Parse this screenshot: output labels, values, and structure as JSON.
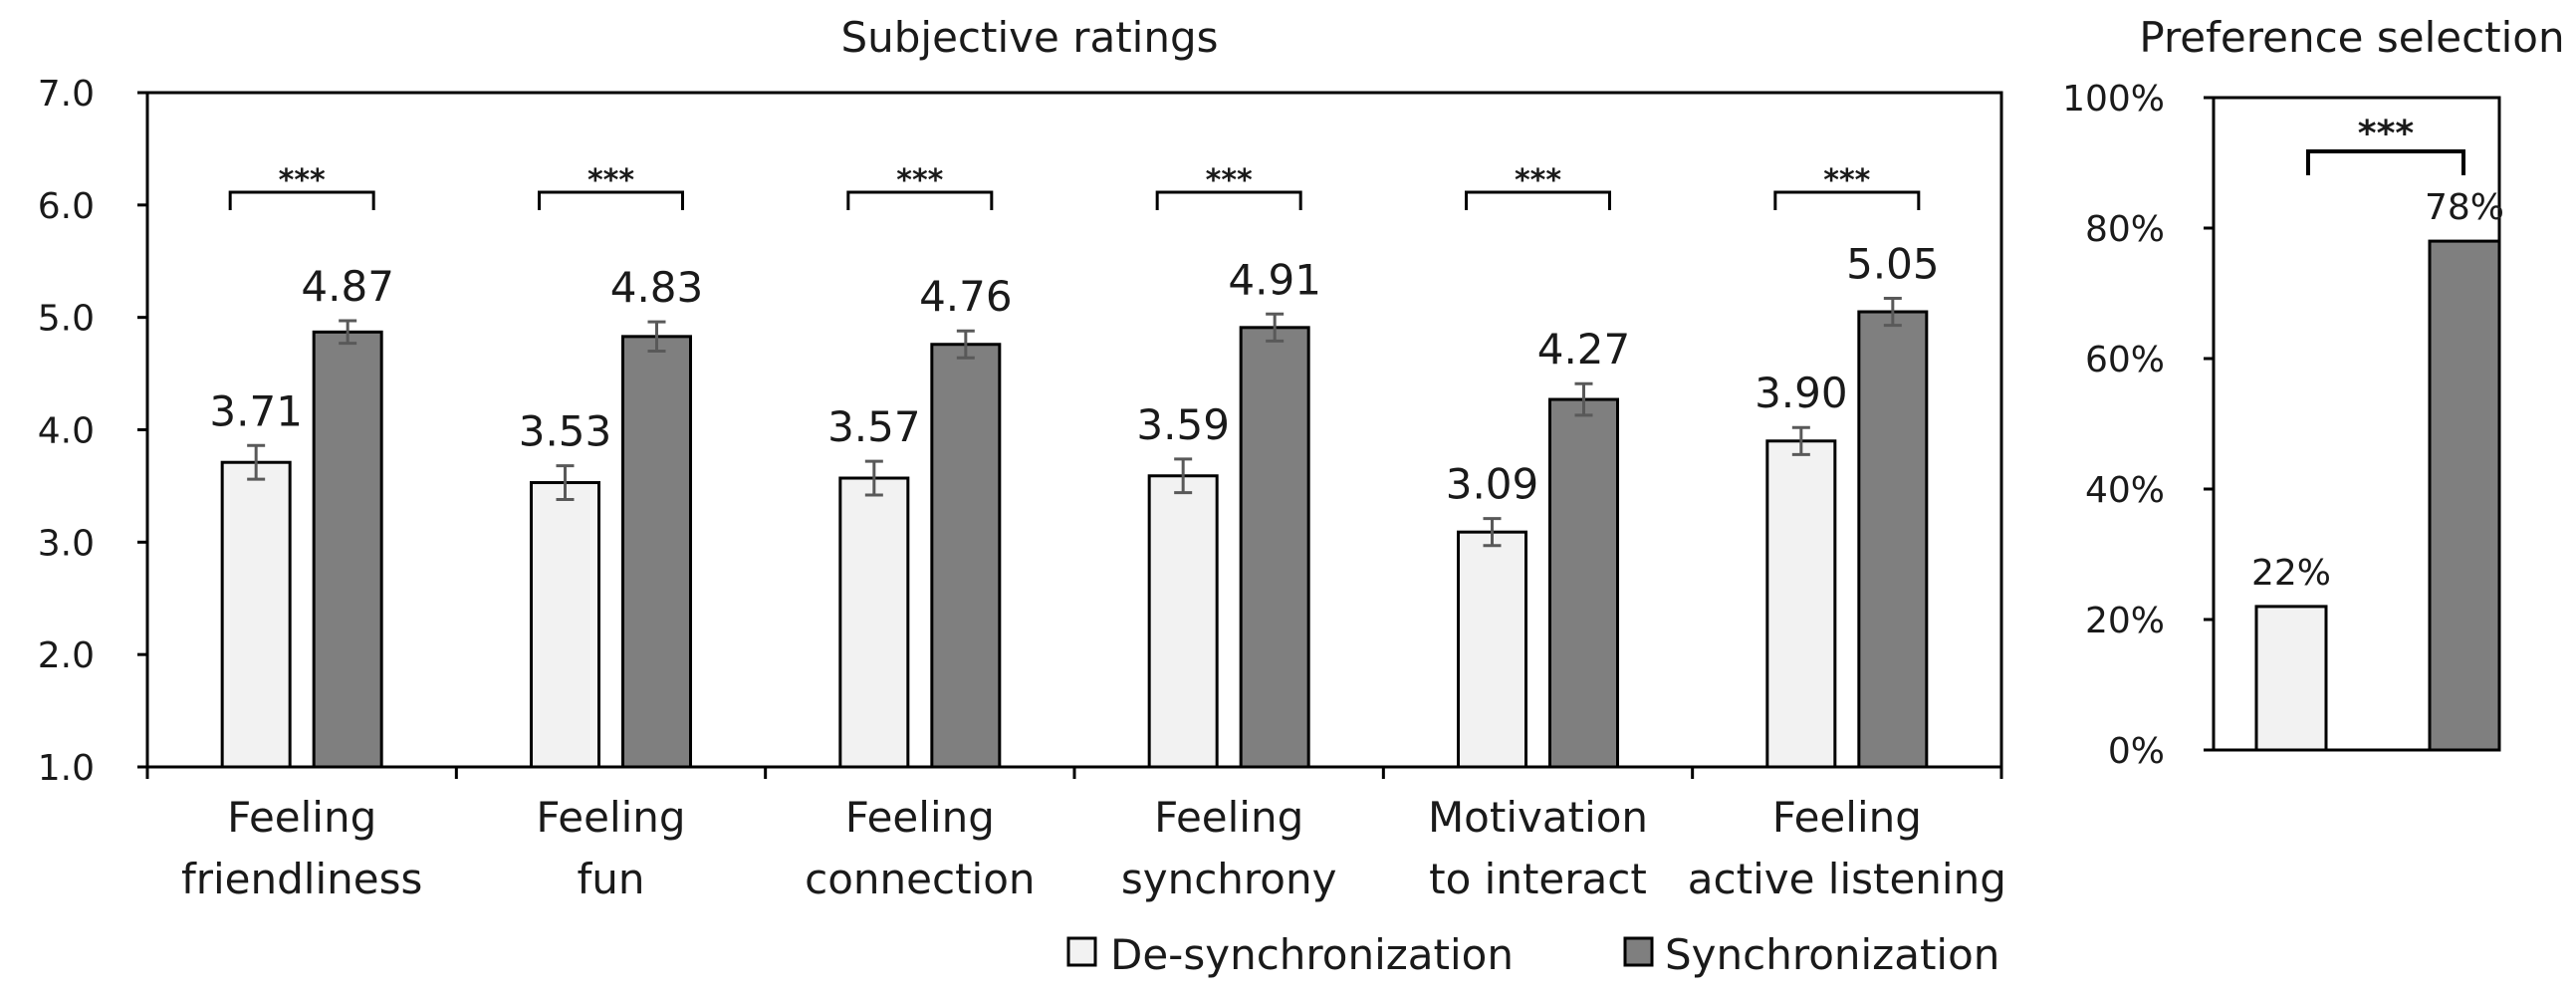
{
  "chart_data": [
    {
      "type": "bar",
      "title": "Subjective ratings",
      "categories": [
        [
          "Feeling",
          "friendliness"
        ],
        [
          "Feeling",
          "fun"
        ],
        [
          "Feeling",
          "connection"
        ],
        [
          "Feeling",
          "synchrony"
        ],
        [
          "Motivation",
          "to interact"
        ],
        [
          "Feeling",
          "active listening"
        ]
      ],
      "series": [
        {
          "name": "De-synchronization",
          "values": [
            3.71,
            3.53,
            3.57,
            3.59,
            3.09,
            3.9
          ],
          "errors": [
            0.15,
            0.15,
            0.15,
            0.15,
            0.12,
            0.12
          ],
          "labels": [
            "3.71",
            "3.53",
            "3.57",
            "3.59",
            "3.09",
            "3.90"
          ]
        },
        {
          "name": "Synchronization",
          "values": [
            4.87,
            4.83,
            4.76,
            4.91,
            4.27,
            5.05
          ],
          "errors": [
            0.1,
            0.13,
            0.12,
            0.12,
            0.14,
            0.12
          ],
          "labels": [
            "4.87",
            "4.83",
            "4.76",
            "4.91",
            "4.27",
            "5.05"
          ]
        }
      ],
      "significance": [
        "***",
        "***",
        "***",
        "***",
        "***",
        "***"
      ],
      "ylim": [
        1.0,
        7.0
      ],
      "yticks": [
        1.0,
        2.0,
        3.0,
        4.0,
        5.0,
        6.0,
        7.0
      ],
      "ytick_labels": [
        "1.0",
        "2.0",
        "3.0",
        "4.0",
        "5.0",
        "6.0",
        "7.0"
      ],
      "xlabel": "",
      "ylabel": "",
      "legend": "bottom"
    },
    {
      "type": "bar",
      "title": "Preference selection",
      "categories": [
        "De-synchronization",
        "Synchronization"
      ],
      "values": [
        22,
        78
      ],
      "labels": [
        "22%",
        "78%"
      ],
      "significance": "***",
      "ylim": [
        0,
        100
      ],
      "yticks": [
        0,
        20,
        40,
        60,
        80,
        100
      ],
      "ytick_labels": [
        "0%",
        "20%",
        "40%",
        "60%",
        "80%",
        "100%"
      ]
    }
  ],
  "legend": [
    {
      "name": "De-synchronization",
      "color": "#f2f2f2"
    },
    {
      "name": "Synchronization",
      "color": "#7f7f7f"
    }
  ],
  "colors": {
    "desync": "#f2f2f2",
    "sync": "#7f7f7f",
    "axis": "#000000",
    "error": "#595959"
  }
}
